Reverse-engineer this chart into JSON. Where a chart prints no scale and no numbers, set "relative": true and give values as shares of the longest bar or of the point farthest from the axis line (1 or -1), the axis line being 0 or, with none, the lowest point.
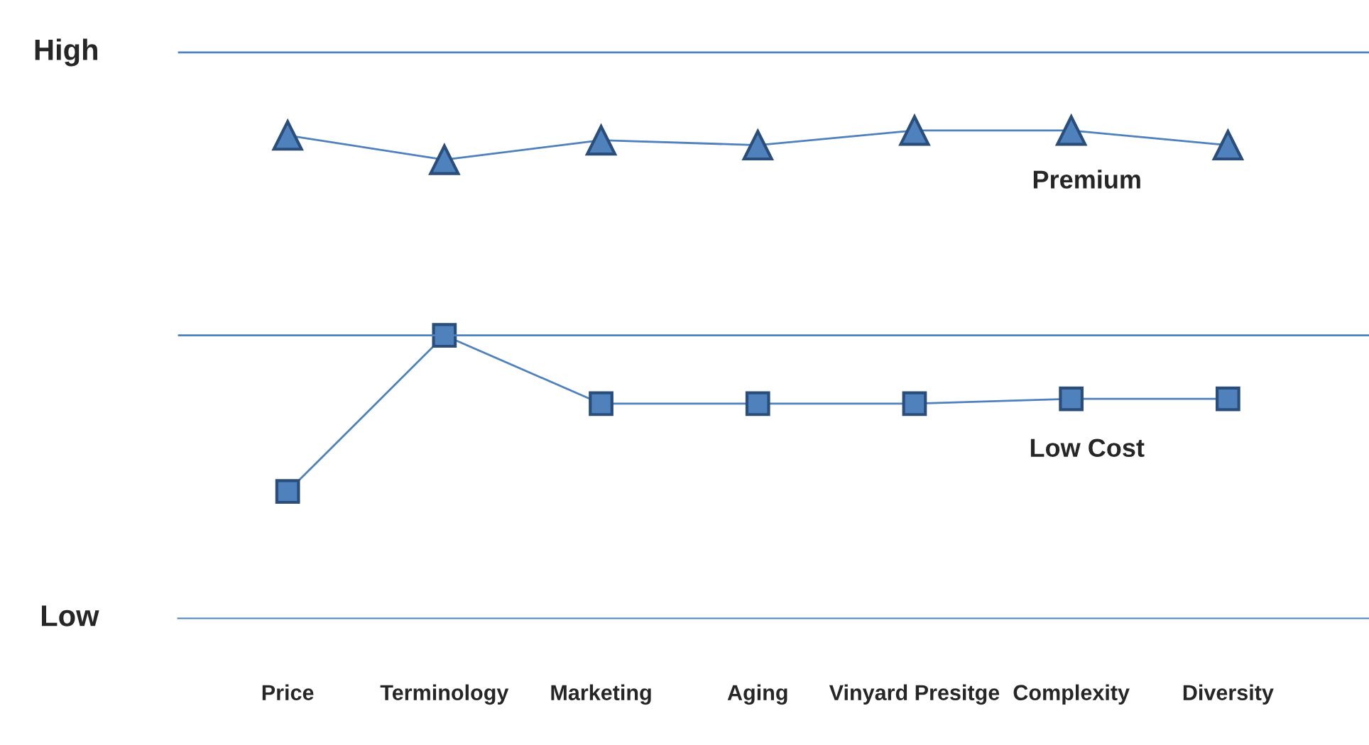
{
  "chart_data": {
    "type": "line",
    "categories": [
      "Price",
      "Terminology",
      "Marketing",
      "Aging",
      "Vinyard Presitge",
      "Complexity",
      "Diversity"
    ],
    "series": [
      {
        "name": "Premium",
        "color": "#4f81bd",
        "marker": "triangle",
        "values": [
          0.99,
          0.94,
          0.98,
          0.97,
          1,
          1,
          0.97
        ]
      },
      {
        "name": "Low Cost",
        "color": "#4f81bd",
        "marker": "square",
        "values": [
          0.26,
          0.58,
          0.44,
          0.44,
          0.44,
          0.45,
          0.45
        ]
      }
    ],
    "relative": true,
    "annotations": [
      "High",
      "Low"
    ],
    "ref_lines": [
      {
        "axis": "y",
        "value": 1.16,
        "color": "#4f81bd"
      },
      {
        "axis": "y",
        "value": 0.58,
        "color": "#4f81bd"
      }
    ],
    "line_style": "solid"
  }
}
